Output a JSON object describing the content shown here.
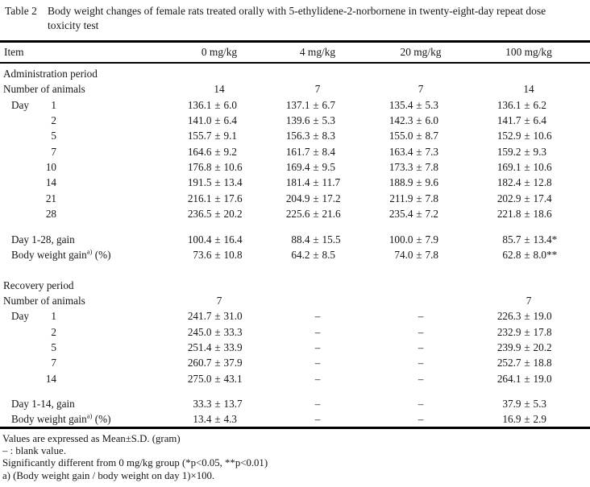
{
  "title": {
    "label": "Table 2",
    "text": "Body weight changes of female rats treated orally with 5-ethylidene-2-norbornene in twenty-eight-day repeat dose toxicity test"
  },
  "header": {
    "item": "Item",
    "doses": [
      "0 mg/kg",
      "4 mg/kg",
      "20 mg/kg",
      "100 mg/kg"
    ]
  },
  "table": {
    "rows": [
      {
        "type": "section",
        "label": "Administration period"
      },
      {
        "type": "data",
        "label": "Number of animals",
        "cells": [
          "14",
          "7",
          "7",
          "14"
        ]
      },
      {
        "type": "day",
        "prefix": "Day",
        "label": "1",
        "cells": [
          "136.1 ± 6.0",
          "137.1 ± 6.7",
          "135.4 ± 5.3",
          "136.1 ± 6.2"
        ]
      },
      {
        "type": "day",
        "label": "2",
        "cells": [
          "141.0 ± 6.4",
          "139.6 ± 5.3",
          "142.3 ± 6.0",
          "141.7 ± 6.4"
        ]
      },
      {
        "type": "day",
        "label": "5",
        "cells": [
          "155.7 ± 9.1",
          "156.3 ± 8.3",
          "155.0 ± 8.7",
          "152.9 ± 10.6"
        ]
      },
      {
        "type": "day",
        "label": "7",
        "cells": [
          "164.6 ± 9.2",
          "161.7 ± 8.4",
          "163.4 ± 7.3",
          "159.2 ± 9.3"
        ]
      },
      {
        "type": "day",
        "label": "10",
        "cells": [
          "176.8 ± 10.6",
          "169.4 ± 9.5",
          "173.3 ± 7.8",
          "169.1 ± 10.6"
        ]
      },
      {
        "type": "day",
        "label": "14",
        "cells": [
          "191.5 ± 13.4",
          "181.4 ± 11.7",
          "188.9 ± 9.6",
          "182.4 ± 12.8"
        ]
      },
      {
        "type": "day",
        "label": "21",
        "cells": [
          "216.1 ± 17.6",
          "204.9 ± 17.2",
          "211.9 ± 7.8",
          "202.9 ± 17.4"
        ]
      },
      {
        "type": "day",
        "label": "28",
        "cells": [
          "236.5 ± 20.2",
          "225.6 ± 21.6",
          "235.4 ± 7.2",
          "221.8 ± 18.6"
        ]
      },
      {
        "type": "spacer"
      },
      {
        "type": "data",
        "indent": true,
        "label": "Day 1-28, gain",
        "cells": [
          "100.4 ± 16.4",
          "88.4 ± 15.5",
          "100.0 ± 7.9",
          "85.7 ± 13.4*"
        ]
      },
      {
        "type": "data",
        "indent": true,
        "label": "Body weight gain",
        "sup": "a)",
        "tail": "(%)",
        "cells": [
          "73.6 ± 10.8",
          "64.2 ± 8.5",
          "74.0 ± 7.8",
          "62.8 ± 8.0**"
        ]
      },
      {
        "type": "spacer"
      },
      {
        "type": "section",
        "label": "Recovery period"
      },
      {
        "type": "data",
        "label": "Number of animals",
        "cells": [
          "7",
          "",
          "",
          "7"
        ]
      },
      {
        "type": "day",
        "prefix": "Day",
        "label": "1",
        "cells": [
          "241.7 ± 31.0",
          "–",
          "–",
          "226.3 ± 19.0"
        ]
      },
      {
        "type": "day",
        "label": "2",
        "cells": [
          "245.0 ± 33.3",
          "–",
          "–",
          "232.9 ± 17.8"
        ]
      },
      {
        "type": "day",
        "label": "5",
        "cells": [
          "251.4 ± 33.9",
          "–",
          "–",
          "239.9 ± 20.2"
        ]
      },
      {
        "type": "day",
        "label": "7",
        "cells": [
          "260.7 ± 37.9",
          "–",
          "–",
          "252.7 ± 18.8"
        ]
      },
      {
        "type": "day",
        "label": "14",
        "cells": [
          "275.0 ± 43.1",
          "–",
          "–",
          "264.1 ± 19.0"
        ]
      },
      {
        "type": "spacer"
      },
      {
        "type": "data",
        "indent": true,
        "label": "Day 1-14, gain",
        "cells": [
          "33.3 ± 13.7",
          "–",
          "–",
          "37.9 ± 5.3"
        ]
      },
      {
        "type": "data",
        "indent": true,
        "label": "Body weight gain",
        "sup": "a)",
        "tail": "(%)",
        "cells": [
          "13.4 ± 4.3",
          "–",
          "–",
          "16.9 ± 2.9"
        ]
      }
    ]
  },
  "footnotes": [
    "Values are expressed as Mean±S.D. (gram)",
    "– : blank value.",
    "Significantly different from 0 mg/kg group (*p<0.05, **p<0.01)",
    "a) (Body weight gain / body weight on day 1)×100."
  ]
}
